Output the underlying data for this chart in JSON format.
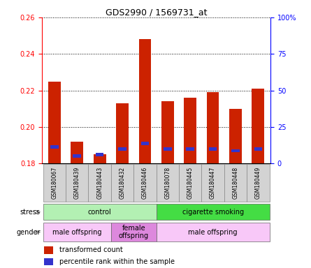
{
  "title": "GDS2990 / 1569731_at",
  "samples": [
    "GSM180067",
    "GSM180439",
    "GSM180443",
    "GSM180432",
    "GSM180446",
    "GSM180078",
    "GSM180445",
    "GSM180447",
    "GSM180448",
    "GSM180449"
  ],
  "red_values": [
    0.225,
    0.192,
    0.185,
    0.213,
    0.248,
    0.214,
    0.216,
    0.219,
    0.21,
    0.221
  ],
  "blue_values": [
    0.189,
    0.184,
    0.185,
    0.188,
    0.191,
    0.188,
    0.188,
    0.188,
    0.187,
    0.188
  ],
  "ymin": 0.18,
  "ymax": 0.26,
  "yticks": [
    0.18,
    0.2,
    0.22,
    0.24,
    0.26
  ],
  "right_yticks": [
    0,
    25,
    50,
    75,
    100
  ],
  "right_ylabels": [
    "0",
    "25",
    "50",
    "75",
    "100%"
  ],
  "stress_groups": [
    {
      "label": "control",
      "start": 0,
      "end": 5,
      "color": "#b3f0b3"
    },
    {
      "label": "cigarette smoking",
      "start": 5,
      "end": 10,
      "color": "#44dd44"
    }
  ],
  "gender_groups": [
    {
      "label": "male offspring",
      "start": 0,
      "end": 3,
      "color": "#f8c8f8"
    },
    {
      "label": "female\noffspring",
      "start": 3,
      "end": 5,
      "color": "#dd88dd"
    },
    {
      "label": "male offspring",
      "start": 5,
      "end": 10,
      "color": "#f8c8f8"
    }
  ],
  "bar_color": "#cc2200",
  "blue_color": "#3333cc",
  "tick_label_bg": "#d3d3d3",
  "legend_red": "transformed count",
  "legend_blue": "percentile rank within the sample",
  "stress_label": "stress",
  "gender_label": "gender",
  "bar_width": 0.55
}
